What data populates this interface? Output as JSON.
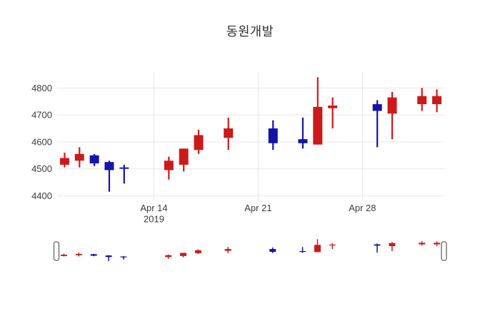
{
  "chart_data": {
    "type": "candlestick",
    "title": "동원개발",
    "increasing_color": "#cc1a1a",
    "decreasing_color": "#1414aa",
    "grid_color": "#e6e6e6",
    "tick_color": "#3c3c3c",
    "slider_handle_fill": "#ffffff",
    "slider_handle_border": "#666666",
    "y_ticks": [
      4400,
      4500,
      4600,
      4700,
      4800
    ],
    "y_range": [
      4381,
      4862
    ],
    "x_ticks": [
      {
        "label": "Apr 14",
        "sublabel": "2019",
        "day": 6
      },
      {
        "label": "Apr 21",
        "sublabel": "",
        "day": 13
      },
      {
        "label": "Apr 28",
        "sublabel": "",
        "day": 20
      }
    ],
    "num_slots": 26,
    "series": [
      {
        "date": "2019-04-08",
        "day": 0,
        "open": 4515,
        "high": 4560,
        "low": 4505,
        "close": 4540
      },
      {
        "date": "2019-04-09",
        "day": 1,
        "open": 4530,
        "high": 4580,
        "low": 4505,
        "close": 4555
      },
      {
        "date": "2019-04-10",
        "day": 2,
        "open": 4550,
        "high": 4555,
        "low": 4510,
        "close": 4520
      },
      {
        "date": "2019-04-11",
        "day": 3,
        "open": 4525,
        "high": 4530,
        "low": 4415,
        "close": 4495
      },
      {
        "date": "2019-04-12",
        "day": 4,
        "open": 4505,
        "high": 4515,
        "low": 4445,
        "close": 4500
      },
      {
        "date": "2019-04-15",
        "day": 7,
        "open": 4495,
        "high": 4545,
        "low": 4460,
        "close": 4530
      },
      {
        "date": "2019-04-16",
        "day": 8,
        "open": 4515,
        "high": 4575,
        "low": 4490,
        "close": 4575
      },
      {
        "date": "2019-04-17",
        "day": 9,
        "open": 4570,
        "high": 4645,
        "low": 4555,
        "close": 4625
      },
      {
        "date": "2019-04-19",
        "day": 11,
        "open": 4615,
        "high": 4690,
        "low": 4570,
        "close": 4650
      },
      {
        "date": "2019-04-22",
        "day": 14,
        "open": 4650,
        "high": 4680,
        "low": 4570,
        "close": 4595
      },
      {
        "date": "2019-04-24",
        "day": 16,
        "open": 4610,
        "high": 4690,
        "low": 4575,
        "close": 4595
      },
      {
        "date": "2019-04-25",
        "day": 17,
        "open": 4590,
        "high": 4840,
        "low": 4590,
        "close": 4730
      },
      {
        "date": "2019-04-26",
        "day": 18,
        "open": 4725,
        "high": 4765,
        "low": 4650,
        "close": 4735
      },
      {
        "date": "2019-04-29",
        "day": 21,
        "open": 4740,
        "high": 4755,
        "low": 4580,
        "close": 4715
      },
      {
        "date": "2019-04-30",
        "day": 22,
        "open": 4705,
        "high": 4785,
        "low": 4610,
        "close": 4765
      },
      {
        "date": "2019-05-02",
        "day": 24,
        "open": 4740,
        "high": 4800,
        "low": 4715,
        "close": 4770
      },
      {
        "date": "2019-05-03",
        "day": 25,
        "open": 4740,
        "high": 4795,
        "low": 4710,
        "close": 4770
      }
    ]
  }
}
